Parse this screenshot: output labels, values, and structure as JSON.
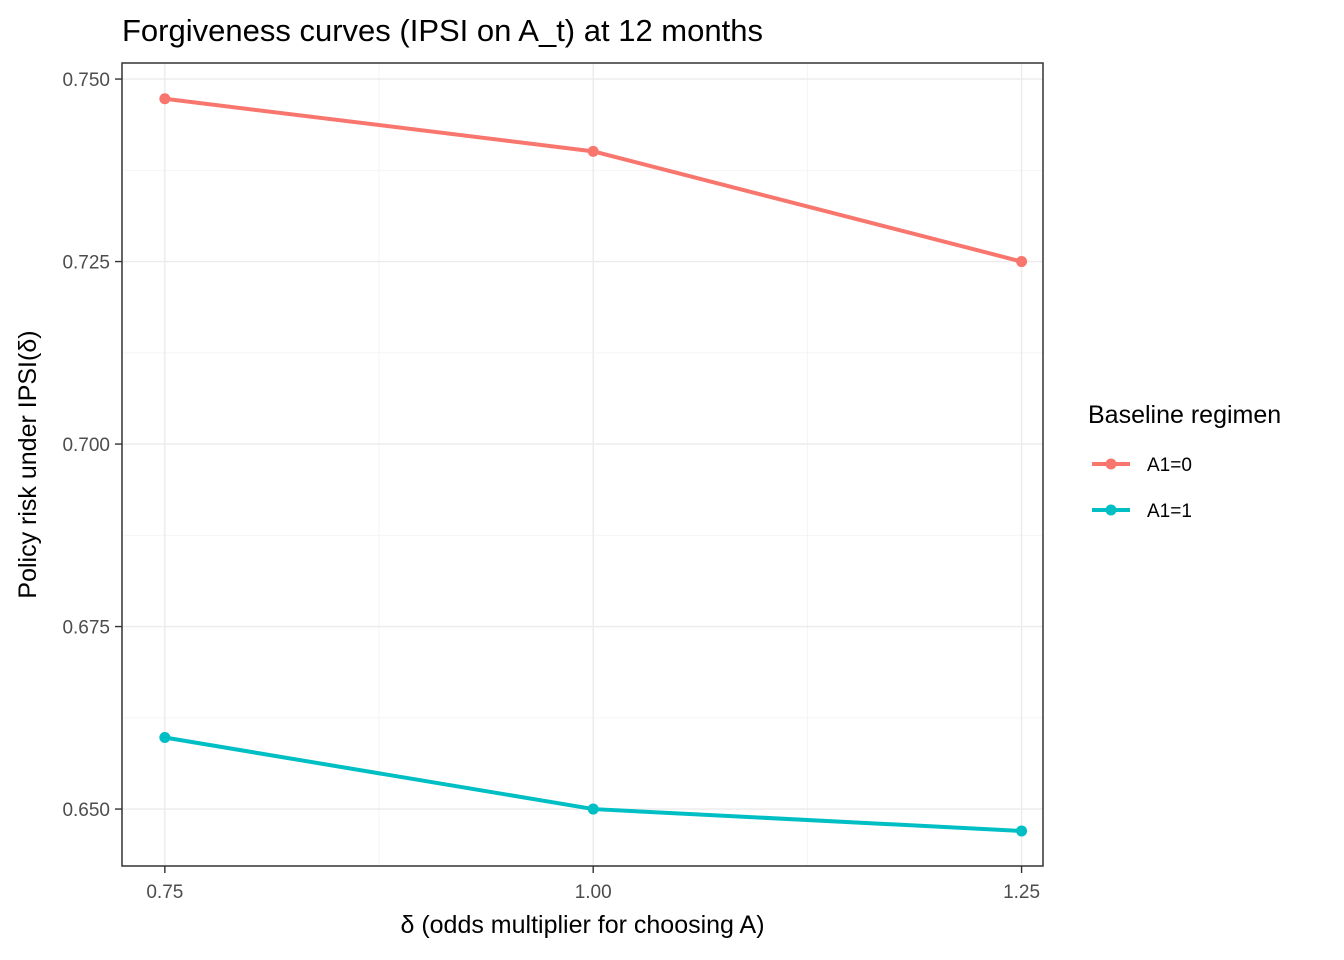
{
  "chart_data": {
    "type": "line",
    "title": "Forgiveness curves (IPSI on A_t) at 12 months",
    "xlabel": "δ (odds multiplier for choosing A)",
    "ylabel": "Policy risk under IPSI(δ)",
    "x": [
      0.75,
      1.0,
      1.25
    ],
    "x_tick_labels": [
      "0.75",
      "1.00",
      "1.25"
    ],
    "y_ticks": [
      0.65,
      0.675,
      0.7,
      0.725,
      0.75
    ],
    "y_tick_labels": [
      "0.650",
      "0.675",
      "0.700",
      "0.725",
      "0.750"
    ],
    "xlim": [
      0.725,
      1.2625
    ],
    "ylim": [
      0.6422,
      0.7522
    ],
    "grid": true,
    "legend": {
      "title": "Baseline regimen",
      "placement": "right"
    },
    "series": [
      {
        "name": "A1=0",
        "color": "#F8766D",
        "values": [
          0.7473,
          0.7401,
          0.725
        ]
      },
      {
        "name": "A1=1",
        "color": "#00BFC4",
        "values": [
          0.6598,
          0.65,
          0.647
        ]
      }
    ]
  }
}
